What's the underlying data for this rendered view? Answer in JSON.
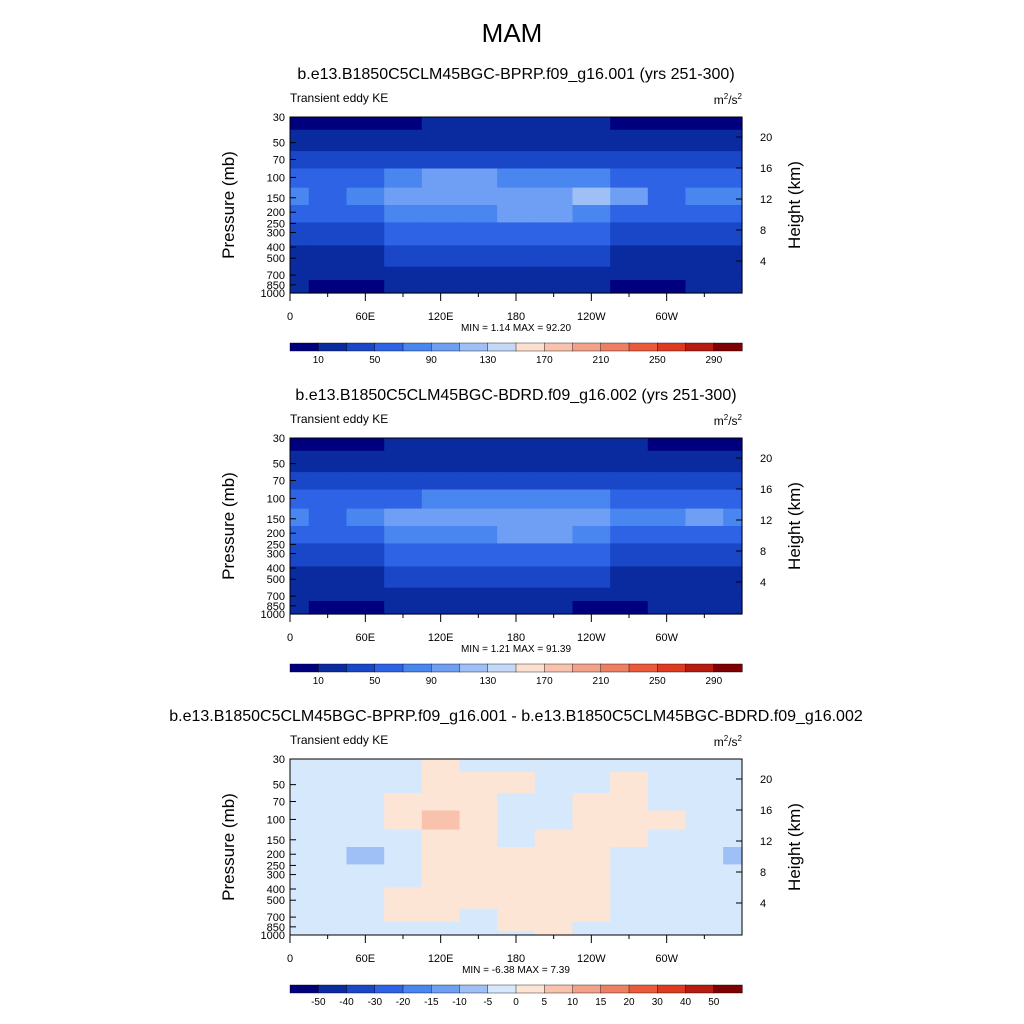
{
  "page": {
    "title": "MAM"
  },
  "chart_data": [
    {
      "type": "heatmap",
      "title": "b.e13.B1850C5CLM45BGC-BPRP.f09_g16.001 (yrs 251-300)",
      "left_label": "Transient eddy KE",
      "units_base": "m",
      "units_sup1": "2",
      "units_mid": "/s",
      "units_sup2": "2",
      "ylabel": "Pressure (mb)",
      "y2label": "Height (km)",
      "y_scale": "log",
      "y_reversed": true,
      "ylim": [
        30,
        1000
      ],
      "y_ticks": [
        "30",
        "50",
        "70",
        "100",
        "150",
        "200",
        "250",
        "300",
        "400",
        "500",
        "700",
        "850",
        "1000"
      ],
      "y_tick_values": [
        30,
        50,
        70,
        100,
        150,
        200,
        250,
        300,
        400,
        500,
        700,
        850,
        1000
      ],
      "y2_ticks": [
        "4",
        "8",
        "12",
        "16",
        "20"
      ],
      "y2_tick_values": [
        4,
        8,
        12,
        16,
        20
      ],
      "x_ticks": [
        "0",
        "60E",
        "120E",
        "180",
        "120W",
        "60W"
      ],
      "x_tick_values": [
        0,
        60,
        120,
        180,
        240,
        300
      ],
      "xlim": [
        0,
        360
      ],
      "min_text": "MIN =   1.14  MAX =  92.20",
      "min": 1.14,
      "max": 92.2,
      "colorbar_labels": [
        "10",
        "50",
        "90",
        "130",
        "170",
        "210",
        "250",
        "290"
      ],
      "colorbar_colors": [
        "#00007f",
        "#0a2ba0",
        "#1947c8",
        "#2e63e6",
        "#4a86f0",
        "#6f9ff5",
        "#9fbff7",
        "#c4d9f8",
        "#fbe0d0",
        "#f8c2ad",
        "#f3a189",
        "#ef7f62",
        "#eb5a3a",
        "#df3a20",
        "#b81c10",
        "#7f0000"
      ],
      "field": {
        "x": [
          0,
          30,
          60,
          90,
          120,
          150,
          180,
          210,
          240,
          270,
          300,
          330,
          360
        ],
        "p": [
          30,
          50,
          70,
          100,
          150,
          200,
          300,
          500,
          700,
          850,
          1000
        ],
        "levels": [
          [
            0,
            0,
            0,
            0,
            1,
            1,
            1,
            1,
            1,
            0,
            0,
            0,
            0
          ],
          [
            1,
            1,
            1,
            1,
            1,
            1,
            1,
            1,
            1,
            1,
            1,
            1,
            1
          ],
          [
            2,
            2,
            2,
            2,
            2,
            2,
            2,
            2,
            2,
            2,
            2,
            2,
            2
          ],
          [
            3,
            3,
            3,
            4,
            5,
            5,
            4,
            4,
            4,
            3,
            3,
            3,
            3
          ],
          [
            4,
            3,
            4,
            5,
            5,
            5,
            5,
            5,
            6,
            5,
            3,
            4,
            4
          ],
          [
            3,
            3,
            3,
            4,
            4,
            4,
            5,
            5,
            4,
            3,
            3,
            3,
            3
          ],
          [
            2,
            2,
            2,
            3,
            3,
            3,
            3,
            3,
            3,
            2,
            2,
            2,
            2
          ],
          [
            1,
            1,
            1,
            2,
            2,
            2,
            2,
            2,
            2,
            1,
            1,
            1,
            1
          ],
          [
            1,
            1,
            1,
            1,
            1,
            1,
            1,
            1,
            1,
            1,
            1,
            1,
            1
          ],
          [
            1,
            0,
            0,
            1,
            1,
            1,
            1,
            1,
            1,
            0,
            0,
            1,
            1
          ],
          [
            1,
            0,
            0,
            1,
            1,
            1,
            1,
            1,
            1,
            0,
            0,
            1,
            1
          ]
        ]
      }
    },
    {
      "type": "heatmap",
      "title": "b.e13.B1850C5CLM45BGC-BDRD.f09_g16.002 (yrs 251-300)",
      "left_label": "Transient eddy KE",
      "units_base": "m",
      "units_sup1": "2",
      "units_mid": "/s",
      "units_sup2": "2",
      "ylabel": "Pressure (mb)",
      "y2label": "Height (km)",
      "y_scale": "log",
      "y_reversed": true,
      "ylim": [
        30,
        1000
      ],
      "y_ticks": [
        "30",
        "50",
        "70",
        "100",
        "150",
        "200",
        "250",
        "300",
        "400",
        "500",
        "700",
        "850",
        "1000"
      ],
      "y_tick_values": [
        30,
        50,
        70,
        100,
        150,
        200,
        250,
        300,
        400,
        500,
        700,
        850,
        1000
      ],
      "y2_ticks": [
        "4",
        "8",
        "12",
        "16",
        "20"
      ],
      "y2_tick_values": [
        4,
        8,
        12,
        16,
        20
      ],
      "x_ticks": [
        "0",
        "60E",
        "120E",
        "180",
        "120W",
        "60W"
      ],
      "x_tick_values": [
        0,
        60,
        120,
        180,
        240,
        300
      ],
      "xlim": [
        0,
        360
      ],
      "min_text": "MIN =   1.21  MAX =  91.39",
      "min": 1.21,
      "max": 91.39,
      "colorbar_labels": [
        "10",
        "50",
        "90",
        "130",
        "170",
        "210",
        "250",
        "290"
      ],
      "colorbar_colors": [
        "#00007f",
        "#0a2ba0",
        "#1947c8",
        "#2e63e6",
        "#4a86f0",
        "#6f9ff5",
        "#9fbff7",
        "#c4d9f8",
        "#fbe0d0",
        "#f8c2ad",
        "#f3a189",
        "#ef7f62",
        "#eb5a3a",
        "#df3a20",
        "#b81c10",
        "#7f0000"
      ],
      "field": {
        "x": [
          0,
          30,
          60,
          90,
          120,
          150,
          180,
          210,
          240,
          270,
          300,
          330,
          360
        ],
        "p": [
          30,
          50,
          70,
          100,
          150,
          200,
          300,
          500,
          700,
          850,
          1000
        ],
        "levels": [
          [
            0,
            0,
            0,
            1,
            1,
            1,
            1,
            1,
            1,
            1,
            0,
            0,
            0
          ],
          [
            1,
            1,
            1,
            1,
            1,
            1,
            1,
            1,
            1,
            1,
            1,
            1,
            1
          ],
          [
            2,
            2,
            2,
            2,
            2,
            2,
            2,
            2,
            2,
            2,
            2,
            2,
            2
          ],
          [
            3,
            3,
            3,
            3,
            4,
            4,
            4,
            4,
            4,
            3,
            3,
            3,
            3
          ],
          [
            4,
            3,
            4,
            5,
            5,
            5,
            5,
            5,
            5,
            4,
            4,
            5,
            4
          ],
          [
            3,
            3,
            3,
            4,
            4,
            4,
            5,
            5,
            4,
            3,
            3,
            3,
            3
          ],
          [
            2,
            2,
            2,
            3,
            3,
            3,
            3,
            3,
            3,
            2,
            2,
            2,
            2
          ],
          [
            1,
            1,
            1,
            2,
            2,
            2,
            2,
            2,
            2,
            1,
            1,
            1,
            1
          ],
          [
            1,
            1,
            1,
            1,
            1,
            1,
            1,
            1,
            1,
            1,
            1,
            1,
            1
          ],
          [
            1,
            0,
            0,
            1,
            1,
            1,
            1,
            1,
            0,
            0,
            1,
            1,
            1
          ],
          [
            1,
            0,
            0,
            1,
            1,
            1,
            1,
            1,
            0,
            0,
            1,
            1,
            1
          ]
        ]
      }
    },
    {
      "type": "heatmap",
      "title": "b.e13.B1850C5CLM45BGC-BPRP.f09_g16.001 - b.e13.B1850C5CLM45BGC-BDRD.f09_g16.002",
      "left_label": "Transient eddy KE",
      "units_base": "m",
      "units_sup1": "2",
      "units_mid": "/s",
      "units_sup2": "2",
      "ylabel": "Pressure (mb)",
      "y2label": "Height (km)",
      "y_scale": "log",
      "y_reversed": true,
      "ylim": [
        30,
        1000
      ],
      "y_ticks": [
        "30",
        "50",
        "70",
        "100",
        "150",
        "200",
        "250",
        "300",
        "400",
        "500",
        "700",
        "850",
        "1000"
      ],
      "y_tick_values": [
        30,
        50,
        70,
        100,
        150,
        200,
        250,
        300,
        400,
        500,
        700,
        850,
        1000
      ],
      "y2_ticks": [
        "4",
        "8",
        "12",
        "16",
        "20"
      ],
      "y2_tick_values": [
        4,
        8,
        12,
        16,
        20
      ],
      "x_ticks": [
        "0",
        "60E",
        "120E",
        "180",
        "120W",
        "60W"
      ],
      "x_tick_values": [
        0,
        60,
        120,
        180,
        240,
        300
      ],
      "xlim": [
        0,
        360
      ],
      "min_text": "MIN =  -6.38  MAX =   7.39",
      "min": -6.38,
      "max": 7.39,
      "colorbar_labels": [
        "-50",
        "-40",
        "-30",
        "-20",
        "-15",
        "-10",
        "-5",
        "0",
        "5",
        "10",
        "15",
        "20",
        "30",
        "40",
        "50"
      ],
      "colorbar_colors": [
        "#00007f",
        "#0a2ba0",
        "#1947c8",
        "#2e63e6",
        "#4a86f0",
        "#6f9ff5",
        "#9fbff7",
        "#d6e8fb",
        "#fde5d6",
        "#f8c2ad",
        "#f3a189",
        "#ef7f62",
        "#eb5a3a",
        "#df3a20",
        "#b81c10",
        "#7f0000"
      ],
      "field": {
        "x": [
          0,
          30,
          60,
          90,
          120,
          150,
          180,
          210,
          240,
          270,
          300,
          330,
          360
        ],
        "p": [
          30,
          50,
          70,
          100,
          150,
          200,
          300,
          500,
          700,
          850,
          1000
        ],
        "levels": [
          [
            7,
            7,
            7,
            7,
            8,
            7,
            7,
            7,
            7,
            7,
            7,
            7,
            7
          ],
          [
            7,
            7,
            7,
            7,
            8,
            8,
            8,
            7,
            7,
            8,
            7,
            7,
            7
          ],
          [
            7,
            7,
            7,
            8,
            8,
            8,
            7,
            7,
            8,
            8,
            7,
            7,
            7
          ],
          [
            7,
            7,
            7,
            8,
            9,
            8,
            7,
            7,
            8,
            8,
            8,
            7,
            7
          ],
          [
            7,
            7,
            7,
            7,
            8,
            8,
            7,
            8,
            8,
            8,
            7,
            7,
            7
          ],
          [
            7,
            7,
            6,
            7,
            8,
            8,
            8,
            8,
            8,
            7,
            7,
            7,
            6
          ],
          [
            7,
            7,
            7,
            7,
            8,
            8,
            8,
            8,
            8,
            7,
            7,
            7,
            7
          ],
          [
            7,
            7,
            7,
            8,
            8,
            8,
            8,
            8,
            8,
            7,
            7,
            7,
            7
          ],
          [
            7,
            7,
            7,
            8,
            8,
            7,
            8,
            8,
            8,
            7,
            7,
            7,
            7
          ],
          [
            7,
            7,
            7,
            7,
            7,
            7,
            8,
            8,
            7,
            7,
            7,
            7,
            7
          ],
          [
            7,
            7,
            7,
            7,
            7,
            7,
            7,
            8,
            7,
            7,
            7,
            7,
            7
          ]
        ]
      }
    }
  ]
}
